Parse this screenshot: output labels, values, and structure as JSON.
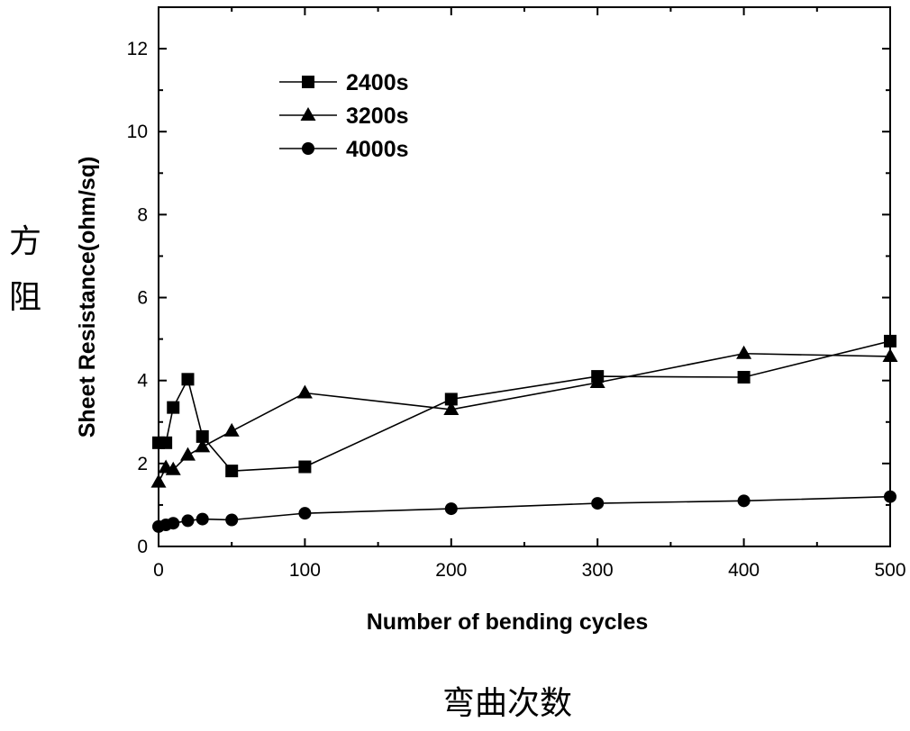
{
  "chart_data": {
    "type": "line",
    "xlabel": "Number of bending cycles",
    "ylabel": "Sheet Resistance(ohm/sq)",
    "xlim": [
      0,
      500
    ],
    "ylim": [
      0,
      13
    ],
    "x_ticks": [
      "0",
      "100",
      "200",
      "300",
      "400",
      "500"
    ],
    "y_ticks": [
      "0",
      "2",
      "4",
      "6",
      "8",
      "10",
      "12"
    ],
    "legend_position": "top-left",
    "grid": false,
    "series": [
      {
        "name": "2400s",
        "marker": "square",
        "x": [
          0,
          5,
          10,
          20,
          30,
          50,
          100,
          200,
          300,
          400,
          500
        ],
        "y": [
          2.5,
          2.5,
          3.35,
          4.03,
          2.65,
          1.82,
          1.92,
          3.55,
          4.1,
          4.08,
          4.95
        ]
      },
      {
        "name": "3200s",
        "marker": "triangle",
        "x": [
          0,
          5,
          10,
          20,
          30,
          50,
          100,
          200,
          300,
          400,
          500
        ],
        "y": [
          1.55,
          1.9,
          1.85,
          2.2,
          2.4,
          2.78,
          3.7,
          3.3,
          3.95,
          4.65,
          4.58
        ]
      },
      {
        "name": "4000s",
        "marker": "circle",
        "x": [
          0,
          5,
          10,
          20,
          30,
          50,
          100,
          200,
          300,
          400,
          500
        ],
        "y": [
          0.48,
          0.52,
          0.56,
          0.62,
          0.66,
          0.64,
          0.8,
          0.91,
          1.04,
          1.1,
          1.2
        ]
      }
    ]
  },
  "annotations": {
    "ylabel_cn_1": "方",
    "ylabel_cn_2": "阻",
    "xlabel_cn": "弯曲次数"
  }
}
